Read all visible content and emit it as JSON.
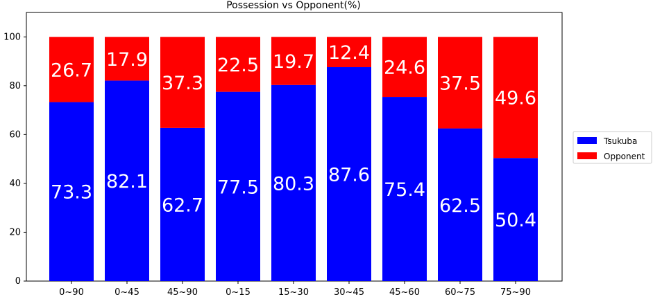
{
  "chart_data": {
    "type": "bar",
    "stacked": true,
    "title": "Possession vs Opponent(%)",
    "xlabel": "",
    "ylabel": "",
    "categories": [
      "0~90",
      "0~45",
      "45~90",
      "0~15",
      "15~30",
      "30~45",
      "45~60",
      "60~75",
      "75~90"
    ],
    "series": [
      {
        "name": "Tsukuba",
        "color": "#0000ff",
        "values": [
          73.3,
          82.1,
          62.7,
          77.5,
          80.3,
          87.6,
          75.4,
          62.5,
          50.4
        ]
      },
      {
        "name": "Opponent",
        "color": "#ff0000",
        "values": [
          26.7,
          17.9,
          37.3,
          22.5,
          19.7,
          12.4,
          24.6,
          37.5,
          49.6
        ]
      }
    ],
    "ylim": [
      0,
      110
    ],
    "yticks": [
      0,
      20,
      40,
      60,
      80,
      100
    ],
    "grid": false,
    "legend_position": "right"
  }
}
